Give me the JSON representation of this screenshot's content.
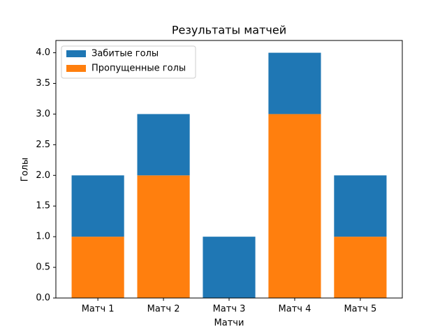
{
  "chart_data": {
    "type": "bar",
    "stacked": true,
    "title": "Результаты матчей",
    "xlabel": "Матчи",
    "ylabel": "Голы",
    "categories": [
      "Матч 1",
      "Матч 2",
      "Матч 3",
      "Матч 4",
      "Матч 5"
    ],
    "series": [
      {
        "name": "Забитые голы",
        "color": "#1f77b4",
        "values": [
          1,
          1,
          1,
          1,
          1
        ]
      },
      {
        "name": "Пропущенные голы",
        "color": "#ff7f0e",
        "values": [
          1,
          2,
          0,
          3,
          1
        ]
      }
    ],
    "ylim": [
      0,
      4.2
    ],
    "yticks": [
      {
        "value": 0,
        "label": "0.0"
      },
      {
        "value": 0.5,
        "label": "0.5"
      },
      {
        "value": 1,
        "label": "1.0"
      },
      {
        "value": 1.5,
        "label": "1.5"
      },
      {
        "value": 2,
        "label": "2.0"
      },
      {
        "value": 2.5,
        "label": "2.5"
      },
      {
        "value": 3,
        "label": "3.0"
      },
      {
        "value": 3.5,
        "label": "3.5"
      },
      {
        "value": 4,
        "label": "4.0"
      }
    ],
    "legend": "upper left"
  }
}
